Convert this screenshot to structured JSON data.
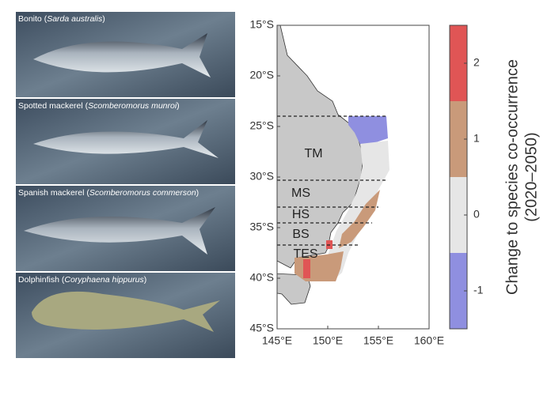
{
  "photos": [
    {
      "label_before": "Bonito (",
      "scientific": "Sarda australis",
      "label_after": ")"
    },
    {
      "label_before": "Spotted mackerel (",
      "scientific": "Scomberomorus munroi",
      "label_after": ")"
    },
    {
      "label_before": "Spanish mackerel (",
      "scientific": "Scomberomorus commerson",
      "label_after": ")"
    },
    {
      "label_before": "Dolphinfish (",
      "scientific": "Coryphaena hippurus",
      "label_after": ")"
    }
  ],
  "map": {
    "xlim": [
      145,
      160
    ],
    "xticks": [
      {
        "value": 145,
        "label": "145°E"
      },
      {
        "value": 150,
        "label": "150°E"
      },
      {
        "value": 155,
        "label": "155°E"
      },
      {
        "value": 160,
        "label": "160°E"
      }
    ],
    "ylim": [
      15,
      45
    ],
    "yticks": [
      {
        "value": 15,
        "label": "15°S"
      },
      {
        "value": 20,
        "label": "20°S"
      },
      {
        "value": 25,
        "label": "25°S"
      },
      {
        "value": 30,
        "label": "30°S"
      },
      {
        "value": 35,
        "label": "35°S"
      },
      {
        "value": 40,
        "label": "40°S"
      },
      {
        "value": 45,
        "label": "45°S"
      }
    ],
    "regions": [
      "TM",
      "MS",
      "HS",
      "BS",
      "TES"
    ],
    "colorbar": {
      "label": [
        "Change to species co-occurrence",
        "(2020–2050)"
      ],
      "lim": [
        -1.5,
        2.5
      ],
      "bins": [
        -1.5,
        -0.5,
        0.5,
        1.5,
        2.5
      ],
      "colors": [
        "#8f8fe0",
        "#e6e6e6",
        "#c99a7a",
        "#e05555"
      ],
      "ticks": [
        -1,
        0,
        1,
        2
      ]
    }
  }
}
